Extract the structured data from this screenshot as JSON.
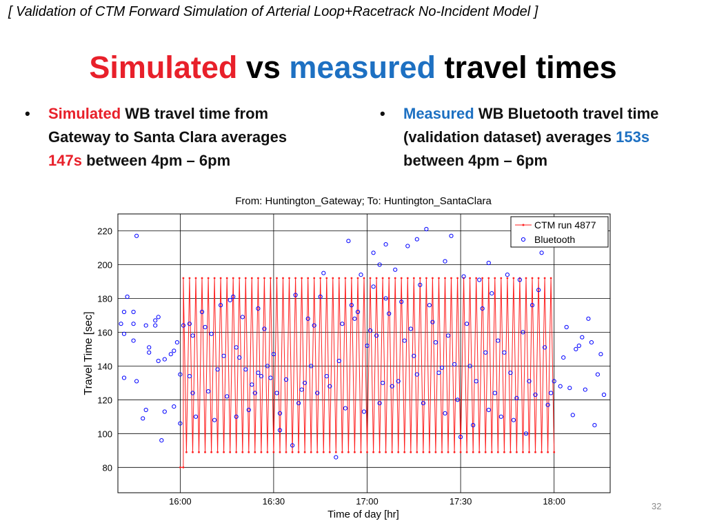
{
  "header": {
    "note": "[ Validation of CTM Forward Simulation of Arterial Loop+Racetrack No-Incident Model ]"
  },
  "title": {
    "part1": "Simulated",
    "part2": " vs ",
    "part3": "measured",
    "part4": " travel times"
  },
  "bullets": {
    "left": {
      "marker": "•",
      "highlight": "Simulated",
      "text1": " WB travel time from Gateway to Santa Clara averages ",
      "value": "147s",
      "text2": " between 4pm – 6pm"
    },
    "right": {
      "marker": "•",
      "highlight": "Measured",
      "text1": " WB Bluetooth travel time (validation dataset) averages ",
      "value": "153s",
      "text2": " between 4pm – 6pm"
    }
  },
  "colors": {
    "simulated": "#e8202a",
    "measured": "#1d70c2",
    "ctm_line": "#ff1e1e",
    "bluetooth_marker": "#0000ff"
  },
  "page_number": "32",
  "chart_data": {
    "type": "line",
    "title": "From: Huntington_Gateway; To: Huntington_SantaClara",
    "xlabel": "Time of day [hr]",
    "ylabel": "Travel Time [sec]",
    "xlim": [
      "15:40",
      "18:18"
    ],
    "ylim": [
      65,
      230
    ],
    "x_ticks": [
      "16:00",
      "16:30",
      "17:00",
      "17:30",
      "18:00"
    ],
    "y_ticks": [
      80,
      100,
      120,
      140,
      160,
      180,
      200,
      220
    ],
    "grid": true,
    "legend_position": "top-right",
    "series": [
      {
        "name": "CTM run 4877",
        "style": "line-with-dots",
        "note": "simulated travel time oscillating with the signal cycle; starts at 80 and alternates between peaks near 192 and troughs near 89 from 16:01 to 18:00",
        "x": [
          "16:00",
          "16:01",
          "16:01",
          "16:02",
          "16:03",
          "16:04",
          "16:05",
          "16:06",
          "16:07",
          "16:08",
          "16:09",
          "16:10",
          "16:11",
          "16:12",
          "16:13",
          "16:14",
          "16:15",
          "16:16",
          "16:17",
          "16:18",
          "16:19",
          "16:20",
          "16:21",
          "16:22",
          "16:23",
          "16:24",
          "16:25",
          "16:26",
          "16:27",
          "16:28",
          "16:29",
          "16:30",
          "16:31",
          "16:32",
          "16:33",
          "16:34",
          "16:35",
          "16:36",
          "16:37",
          "16:38",
          "16:39",
          "16:40",
          "16:41",
          "16:42",
          "16:43",
          "16:44",
          "16:45",
          "16:46",
          "16:47",
          "16:48",
          "16:49",
          "16:50",
          "16:51",
          "16:52",
          "16:53",
          "16:54",
          "16:55",
          "16:56",
          "16:57",
          "16:58",
          "16:59",
          "17:00",
          "17:01",
          "17:02",
          "17:03",
          "17:04",
          "17:05",
          "17:06",
          "17:07",
          "17:08",
          "17:09",
          "17:10",
          "17:11",
          "17:12",
          "17:13",
          "17:14",
          "17:15",
          "17:16",
          "17:17",
          "17:18",
          "17:19",
          "17:20",
          "17:21",
          "17:22",
          "17:23",
          "17:24",
          "17:25",
          "17:26",
          "17:27",
          "17:28",
          "17:29",
          "17:30",
          "17:31",
          "17:32",
          "17:33",
          "17:34",
          "17:35",
          "17:36",
          "17:37",
          "17:38",
          "17:39",
          "17:40",
          "17:41",
          "17:42",
          "17:43",
          "17:44",
          "17:45",
          "17:46",
          "17:47",
          "17:48",
          "17:49",
          "17:50",
          "17:51",
          "17:52",
          "17:53",
          "17:54",
          "17:55",
          "17:56",
          "17:57",
          "17:58",
          "17:59",
          "18:00"
        ],
        "values": [
          80,
          80,
          192,
          89,
          192,
          89,
          192,
          89,
          192,
          89,
          192,
          89,
          192,
          89,
          192,
          89,
          192,
          89,
          192,
          89,
          192,
          89,
          192,
          89,
          192,
          89,
          192,
          89,
          192,
          89,
          192,
          89,
          192,
          89,
          192,
          89,
          192,
          89,
          192,
          89,
          192,
          89,
          192,
          89,
          192,
          89,
          192,
          89,
          192,
          89,
          192,
          89,
          192,
          89,
          192,
          89,
          192,
          89,
          192,
          89,
          192,
          89,
          192,
          89,
          192,
          89,
          192,
          89,
          192,
          89,
          192,
          89,
          192,
          89,
          192,
          89,
          192,
          89,
          192,
          89,
          192,
          89,
          192,
          89,
          192,
          89,
          192,
          89,
          192,
          89,
          192,
          89,
          192,
          89,
          192,
          89,
          192,
          89,
          192,
          89,
          192,
          89,
          192,
          89,
          192,
          89,
          192,
          89,
          192,
          89,
          192,
          89,
          192,
          89,
          192,
          89,
          192,
          89,
          192,
          89,
          192,
          89
        ]
      },
      {
        "name": "Bluetooth",
        "style": "open-circle",
        "points": [
          [
            "15:41",
            165
          ],
          [
            "15:42",
            172
          ],
          [
            "15:42",
            159
          ],
          [
            "15:42",
            133
          ],
          [
            "15:43",
            181
          ],
          [
            "15:45",
            172
          ],
          [
            "15:45",
            165
          ],
          [
            "15:45",
            155
          ],
          [
            "15:46",
            217
          ],
          [
            "15:46",
            131
          ],
          [
            "15:48",
            109
          ],
          [
            "15:49",
            114
          ],
          [
            "15:49",
            164
          ],
          [
            "15:50",
            151
          ],
          [
            "15:50",
            148
          ],
          [
            "15:52",
            164
          ],
          [
            "15:52",
            167
          ],
          [
            "15:53",
            169
          ],
          [
            "15:53",
            143
          ],
          [
            "15:54",
            96
          ],
          [
            "15:55",
            144
          ],
          [
            "15:55",
            113
          ],
          [
            "15:57",
            147
          ],
          [
            "15:58",
            149
          ],
          [
            "15:58",
            116
          ],
          [
            "15:59",
            154
          ],
          [
            "16:00",
            106
          ],
          [
            "16:00",
            135
          ],
          [
            "16:01",
            164
          ],
          [
            "16:03",
            165
          ],
          [
            "16:03",
            134
          ],
          [
            "16:04",
            158
          ],
          [
            "16:04",
            124
          ],
          [
            "16:05",
            110
          ],
          [
            "16:07",
            172
          ],
          [
            "16:08",
            163
          ],
          [
            "16:09",
            125
          ],
          [
            "16:10",
            159
          ],
          [
            "16:11",
            108
          ],
          [
            "16:12",
            138
          ],
          [
            "16:13",
            176
          ],
          [
            "16:14",
            146
          ],
          [
            "16:15",
            122
          ],
          [
            "16:16",
            179
          ],
          [
            "16:17",
            181
          ],
          [
            "16:18",
            110
          ],
          [
            "16:18",
            151
          ],
          [
            "16:19",
            145
          ],
          [
            "16:20",
            169
          ],
          [
            "16:21",
            138
          ],
          [
            "16:22",
            114
          ],
          [
            "16:23",
            129
          ],
          [
            "16:24",
            124
          ],
          [
            "16:25",
            174
          ],
          [
            "16:25",
            136
          ],
          [
            "16:26",
            134
          ],
          [
            "16:27",
            162
          ],
          [
            "16:28",
            140
          ],
          [
            "16:29",
            133
          ],
          [
            "16:30",
            147
          ],
          [
            "16:31",
            124
          ],
          [
            "16:32",
            112
          ],
          [
            "16:32",
            102
          ],
          [
            "16:34",
            132
          ],
          [
            "16:36",
            93
          ],
          [
            "16:37",
            182
          ],
          [
            "16:38",
            118
          ],
          [
            "16:39",
            126
          ],
          [
            "16:40",
            130
          ],
          [
            "16:41",
            168
          ],
          [
            "16:42",
            140
          ],
          [
            "16:43",
            164
          ],
          [
            "16:44",
            124
          ],
          [
            "16:45",
            181
          ],
          [
            "16:46",
            195
          ],
          [
            "16:47",
            134
          ],
          [
            "16:48",
            128
          ],
          [
            "16:50",
            86
          ],
          [
            "16:51",
            143
          ],
          [
            "16:52",
            165
          ],
          [
            "16:53",
            115
          ],
          [
            "16:54",
            214
          ],
          [
            "16:55",
            176
          ],
          [
            "16:56",
            168
          ],
          [
            "16:57",
            172
          ],
          [
            "16:58",
            194
          ],
          [
            "16:59",
            113
          ],
          [
            "17:00",
            152
          ],
          [
            "17:01",
            161
          ],
          [
            "17:02",
            207
          ],
          [
            "17:02",
            187
          ],
          [
            "17:03",
            158
          ],
          [
            "17:04",
            200
          ],
          [
            "17:04",
            118
          ],
          [
            "17:05",
            130
          ],
          [
            "17:06",
            212
          ],
          [
            "17:06",
            180
          ],
          [
            "17:07",
            171
          ],
          [
            "17:08",
            128
          ],
          [
            "17:09",
            197
          ],
          [
            "17:10",
            131
          ],
          [
            "17:11",
            178
          ],
          [
            "17:12",
            155
          ],
          [
            "17:13",
            211
          ],
          [
            "17:14",
            162
          ],
          [
            "17:15",
            146
          ],
          [
            "17:16",
            215
          ],
          [
            "17:16",
            135
          ],
          [
            "17:17",
            188
          ],
          [
            "17:18",
            118
          ],
          [
            "17:19",
            221
          ],
          [
            "17:20",
            176
          ],
          [
            "17:21",
            166
          ],
          [
            "17:22",
            154
          ],
          [
            "17:23",
            136
          ],
          [
            "17:24",
            139
          ],
          [
            "17:25",
            202
          ],
          [
            "17:25",
            112
          ],
          [
            "17:26",
            158
          ],
          [
            "17:27",
            217
          ],
          [
            "17:28",
            141
          ],
          [
            "17:29",
            120
          ],
          [
            "17:30",
            98
          ],
          [
            "17:31",
            193
          ],
          [
            "17:32",
            165
          ],
          [
            "17:33",
            140
          ],
          [
            "17:34",
            105
          ],
          [
            "17:35",
            131
          ],
          [
            "17:36",
            191
          ],
          [
            "17:37",
            174
          ],
          [
            "17:38",
            148
          ],
          [
            "17:39",
            201
          ],
          [
            "17:39",
            114
          ],
          [
            "17:40",
            183
          ],
          [
            "17:41",
            124
          ],
          [
            "17:42",
            155
          ],
          [
            "17:43",
            110
          ],
          [
            "17:44",
            148
          ],
          [
            "17:45",
            194
          ],
          [
            "17:46",
            136
          ],
          [
            "17:47",
            108
          ],
          [
            "17:48",
            121
          ],
          [
            "17:49",
            191
          ],
          [
            "17:50",
            160
          ],
          [
            "17:51",
            100
          ],
          [
            "17:52",
            131
          ],
          [
            "17:53",
            176
          ],
          [
            "17:54",
            123
          ],
          [
            "17:55",
            185
          ],
          [
            "17:56",
            207
          ],
          [
            "17:57",
            151
          ],
          [
            "17:58",
            117
          ],
          [
            "17:59",
            124
          ],
          [
            "18:00",
            131
          ],
          [
            "18:02",
            128
          ],
          [
            "18:03",
            145
          ],
          [
            "18:04",
            163
          ],
          [
            "18:05",
            127
          ],
          [
            "18:06",
            111
          ],
          [
            "18:07",
            150
          ],
          [
            "18:08",
            152
          ],
          [
            "18:09",
            157
          ],
          [
            "18:10",
            126
          ],
          [
            "18:11",
            168
          ],
          [
            "18:12",
            154
          ],
          [
            "18:13",
            105
          ],
          [
            "18:14",
            135
          ],
          [
            "18:15",
            147
          ],
          [
            "18:16",
            123
          ]
        ]
      }
    ]
  }
}
